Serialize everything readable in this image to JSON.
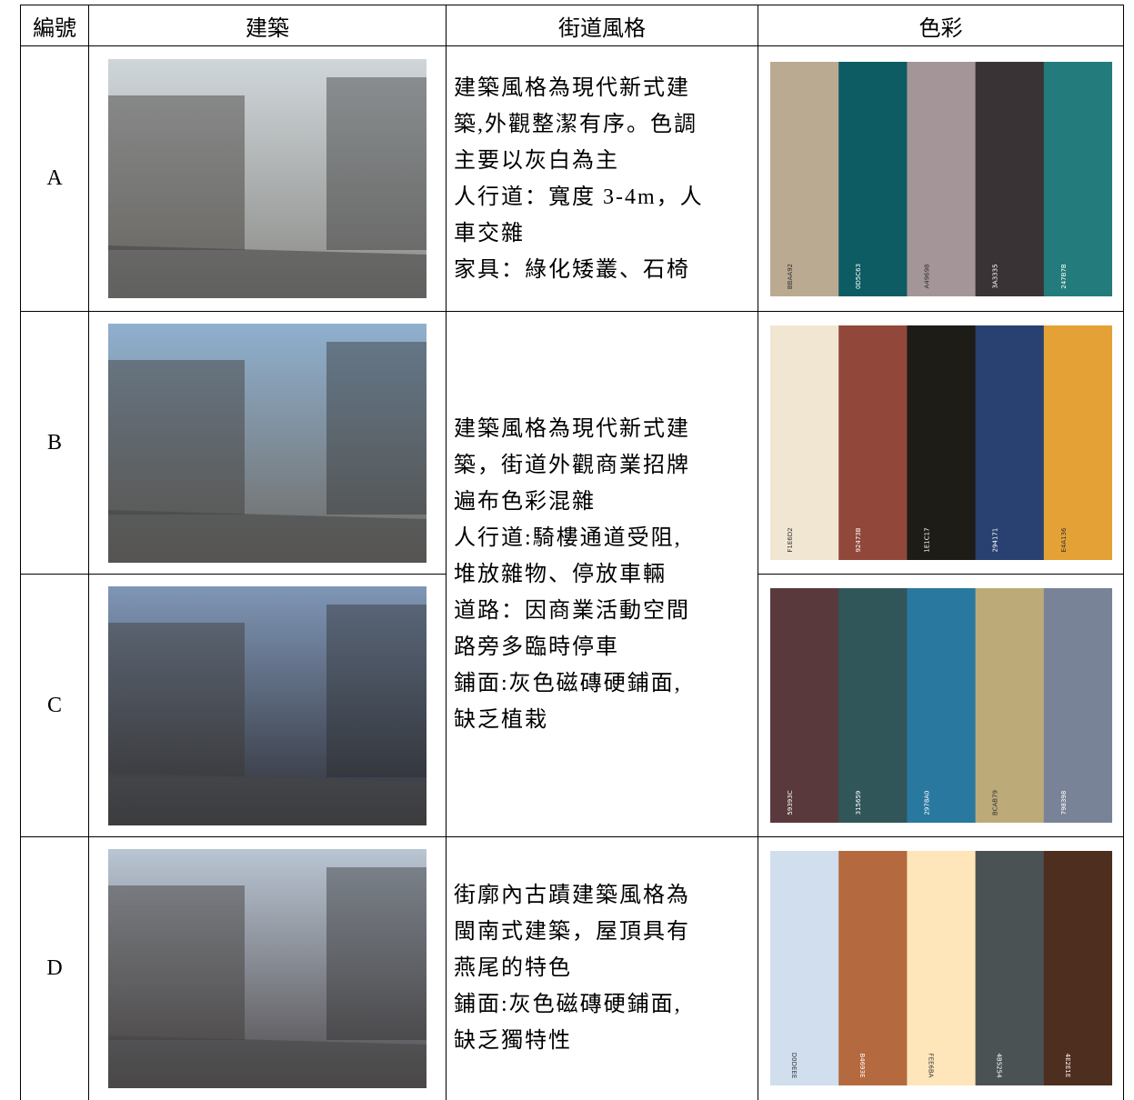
{
  "table": {
    "header": [
      "編號",
      "建築",
      "街道風格",
      "色彩"
    ],
    "rows": [
      {
        "id": "A",
        "style": [
          "建築風格為現代新式建",
          "築,外觀整潔有序。色調",
          "主要以灰白為主",
          "人行道：寬度 3-4m，人",
          "車交雜",
          "家具：綠化矮叢、石椅"
        ],
        "palette": [
          "BBAA92",
          "0D5C63",
          "A49698",
          "3A3335",
          "247B7B"
        ]
      },
      {
        "id": "B",
        "style": [
          "建築風格為現代新式建",
          "築，街道外觀商業招牌",
          "遍布色彩混雜",
          "人行道:騎樓通道受阻,",
          "堆放雜物、停放車輛",
          "道路：因商業活動空間",
          "路旁多臨時停車",
          "鋪面:灰色磁磚硬鋪面,",
          "缺乏植栽"
        ],
        "palette": [
          "F1E6D2",
          "92473B",
          "1E1C17",
          "294171",
          "E4A136"
        ]
      },
      {
        "id": "C",
        "palette": [
          "59393C",
          "315659",
          "2978A0",
          "BCAB79",
          "798398"
        ]
      },
      {
        "id": "D",
        "style": [
          "街廓內古蹟建築風格為",
          "閩南式建築，屋頂具有",
          "燕尾的特色",
          "鋪面:灰色磁磚硬鋪面,",
          "缺乏獨特性"
        ],
        "palette": [
          "D0DEEE",
          "B4693E",
          "FEE6BA",
          "4B5254",
          "4E2E1E"
        ]
      }
    ]
  }
}
